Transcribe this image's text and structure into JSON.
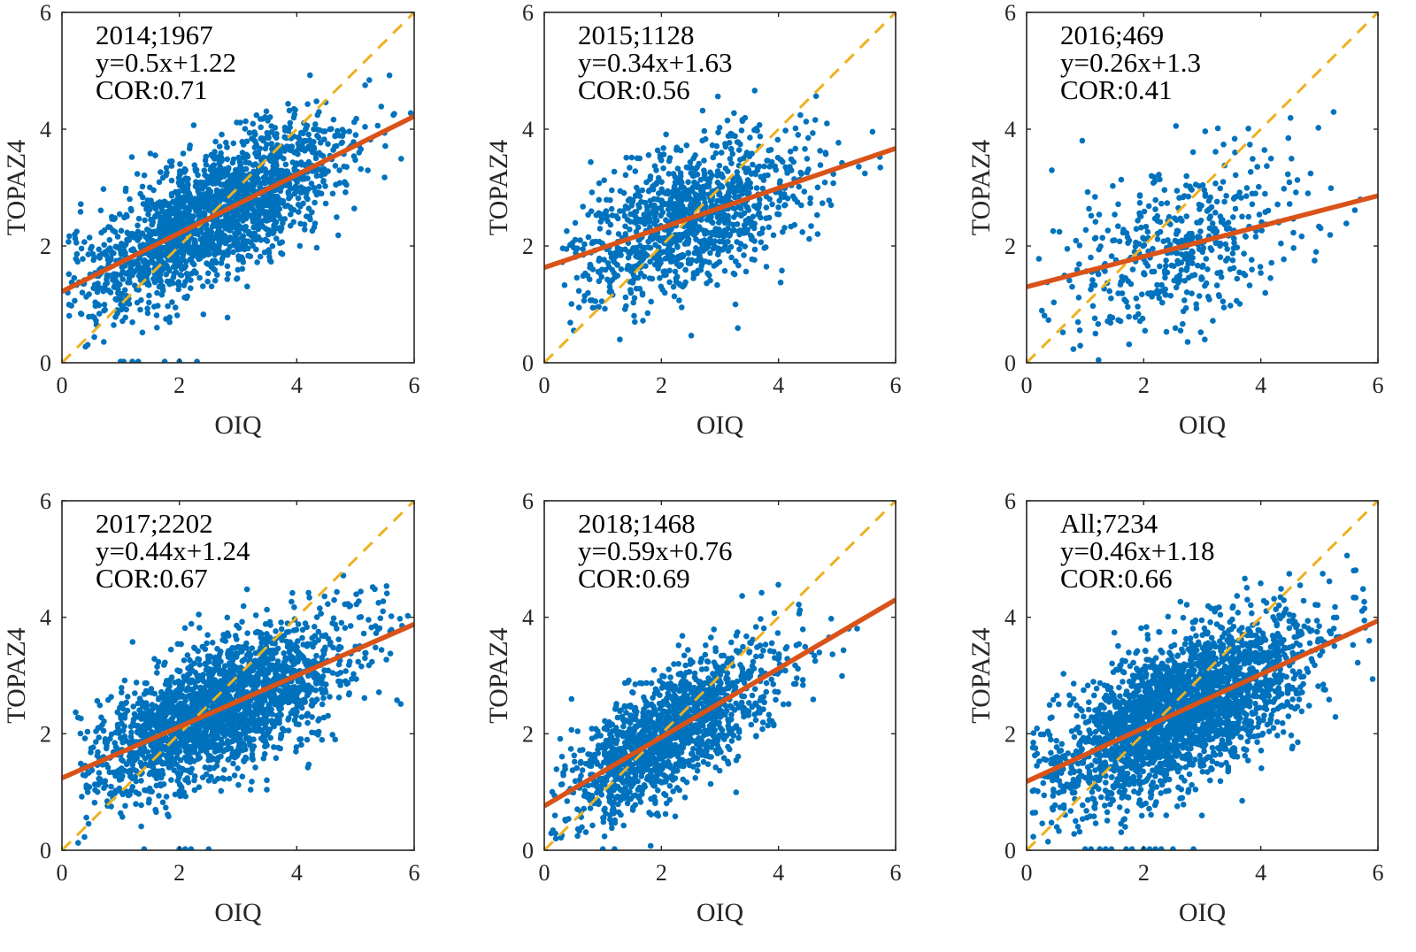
{
  "figure": {
    "colors": {
      "points": "#0072BD",
      "fit_line": "#D95319",
      "identity_line": "#EDB120",
      "axes": "#262626"
    }
  },
  "chart_data": [
    {
      "type": "scatter",
      "panel": "2014",
      "title": "",
      "xlabel": "OIQ",
      "ylabel": "TOPAZ4",
      "xlim": [
        0,
        6
      ],
      "ylim": [
        0,
        6
      ],
      "xticks": [
        "0",
        "2",
        "4",
        "6"
      ],
      "yticks": [
        "0",
        "2",
        "4",
        "6"
      ],
      "grid": false,
      "annotations": [
        "2014;1967",
        "y=0.5x+1.22",
        "COR:0.71"
      ],
      "n_points": 1967,
      "fit": {
        "slope": 0.5,
        "intercept": 1.22
      },
      "correlation": 0.71,
      "identity_line": true,
      "cloud": {
        "x_center": 2.6,
        "x_spread": 1.1,
        "noise": 0.55,
        "x_min": 0.1,
        "x_max": 5.95
      },
      "zero_points_x": [
        1.0,
        1.05,
        1.2,
        1.3,
        1.75,
        2.0,
        2.3
      ]
    },
    {
      "type": "scatter",
      "panel": "2015",
      "title": "",
      "xlabel": "OIQ",
      "ylabel": "TOPAZ4",
      "xlim": [
        0,
        6
      ],
      "ylim": [
        0,
        6
      ],
      "xticks": [
        "0",
        "2",
        "4",
        "6"
      ],
      "yticks": [
        "0",
        "2",
        "4",
        "6"
      ],
      "grid": false,
      "annotations": [
        "2015;1128",
        "y=0.34x+1.63",
        "COR:0.56"
      ],
      "n_points": 1128,
      "fit": {
        "slope": 0.34,
        "intercept": 1.63
      },
      "correlation": 0.56,
      "identity_line": true,
      "cloud": {
        "x_center": 2.5,
        "x_spread": 1.0,
        "noise": 0.6,
        "x_min": 0.3,
        "x_max": 5.9
      },
      "zero_points_x": []
    },
    {
      "type": "scatter",
      "panel": "2016",
      "title": "",
      "xlabel": "OIQ",
      "ylabel": "TOPAZ4",
      "xlim": [
        0,
        6
      ],
      "ylim": [
        0,
        6
      ],
      "xticks": [
        "0",
        "2",
        "4",
        "6"
      ],
      "yticks": [
        "0",
        "2",
        "4",
        "6"
      ],
      "grid": false,
      "annotations": [
        "2016;469",
        "y=0.26x+1.3",
        "COR:0.41"
      ],
      "n_points": 469,
      "fit": {
        "slope": 0.26,
        "intercept": 1.3
      },
      "correlation": 0.41,
      "identity_line": true,
      "cloud": {
        "x_center": 2.6,
        "x_spread": 1.1,
        "noise": 0.7,
        "x_min": 0.2,
        "x_max": 5.8
      },
      "zero_points_x": []
    },
    {
      "type": "scatter",
      "panel": "2017",
      "title": "",
      "xlabel": "OIQ",
      "ylabel": "TOPAZ4",
      "xlim": [
        0,
        6
      ],
      "ylim": [
        0,
        6
      ],
      "xticks": [
        "0",
        "2",
        "4",
        "6"
      ],
      "yticks": [
        "0",
        "2",
        "4",
        "6"
      ],
      "grid": false,
      "annotations": [
        "2017;2202",
        "y=0.44x+1.24",
        "COR:0.67"
      ],
      "n_points": 2202,
      "fit": {
        "slope": 0.44,
        "intercept": 1.24
      },
      "correlation": 0.67,
      "identity_line": true,
      "cloud": {
        "x_center": 2.7,
        "x_spread": 1.1,
        "noise": 0.55,
        "x_min": 0.2,
        "x_max": 5.95
      },
      "zero_points_x": [
        1.4,
        2.0,
        2.1,
        2.2,
        2.5
      ]
    },
    {
      "type": "scatter",
      "panel": "2018",
      "title": "",
      "xlabel": "OIQ",
      "ylabel": "TOPAZ4",
      "xlim": [
        0,
        6
      ],
      "ylim": [
        0,
        6
      ],
      "xticks": [
        "0",
        "2",
        "4",
        "6"
      ],
      "yticks": [
        "0",
        "2",
        "4",
        "6"
      ],
      "grid": false,
      "annotations": [
        "2018;1468",
        "y=0.59x+0.76",
        "COR:0.69"
      ],
      "n_points": 1468,
      "fit": {
        "slope": 0.59,
        "intercept": 0.76
      },
      "correlation": 0.69,
      "identity_line": true,
      "cloud": {
        "x_center": 2.1,
        "x_spread": 0.9,
        "noise": 0.5,
        "x_min": 0.1,
        "x_max": 5.6
      },
      "zero_points_x": [
        1.0,
        1.2
      ]
    },
    {
      "type": "scatter",
      "panel": "All",
      "title": "",
      "xlabel": "OIQ",
      "ylabel": "TOPAZ4",
      "xlim": [
        0,
        6
      ],
      "ylim": [
        0,
        6
      ],
      "xticks": [
        "0",
        "2",
        "4",
        "6"
      ],
      "yticks": [
        "0",
        "2",
        "4",
        "6"
      ],
      "grid": false,
      "annotations": [
        "All;7234",
        "y=0.46x+1.18",
        "COR:0.66"
      ],
      "n_points": 7234,
      "fit": {
        "slope": 0.46,
        "intercept": 1.18
      },
      "correlation": 0.66,
      "identity_line": true,
      "cloud": {
        "x_center": 2.6,
        "x_spread": 1.1,
        "noise": 0.6,
        "x_min": 0.1,
        "x_max": 5.95
      },
      "zero_points_x": [
        1.0,
        1.1,
        1.25,
        1.35,
        1.45,
        1.7,
        1.8,
        2.0,
        2.1,
        2.2,
        2.3,
        2.5,
        2.85
      ]
    }
  ]
}
